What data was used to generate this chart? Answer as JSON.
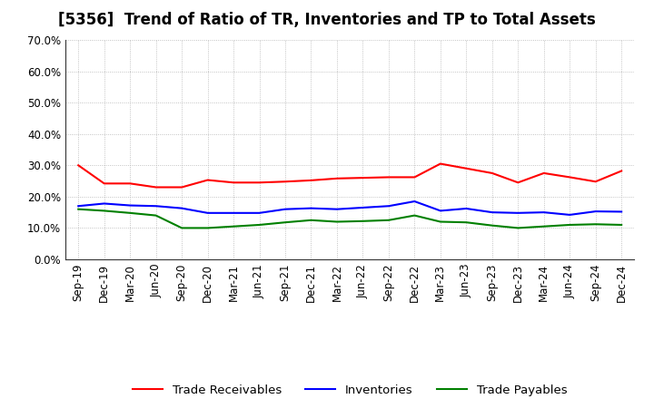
{
  "title": "[5356]  Trend of Ratio of TR, Inventories and TP to Total Assets",
  "labels": [
    "Sep-19",
    "Dec-19",
    "Mar-20",
    "Jun-20",
    "Sep-20",
    "Dec-20",
    "Mar-21",
    "Jun-21",
    "Sep-21",
    "Dec-21",
    "Mar-22",
    "Jun-22",
    "Sep-22",
    "Dec-22",
    "Mar-23",
    "Jun-23",
    "Sep-23",
    "Dec-23",
    "Mar-24",
    "Jun-24",
    "Sep-24",
    "Dec-24"
  ],
  "trade_receivables": [
    0.3,
    0.242,
    0.242,
    0.23,
    0.23,
    0.253,
    0.245,
    0.245,
    0.248,
    0.252,
    0.258,
    0.26,
    0.262,
    0.262,
    0.305,
    0.29,
    0.275,
    0.245,
    0.275,
    0.262,
    0.248,
    0.282
  ],
  "inventories": [
    0.17,
    0.178,
    0.172,
    0.17,
    0.163,
    0.148,
    0.148,
    0.148,
    0.16,
    0.163,
    0.16,
    0.165,
    0.17,
    0.185,
    0.155,
    0.162,
    0.15,
    0.148,
    0.15,
    0.142,
    0.153,
    0.152
  ],
  "trade_payables": [
    0.16,
    0.155,
    0.148,
    0.14,
    0.1,
    0.1,
    0.105,
    0.11,
    0.118,
    0.125,
    0.12,
    0.122,
    0.125,
    0.14,
    0.12,
    0.118,
    0.108,
    0.1,
    0.105,
    0.11,
    0.112,
    0.11
  ],
  "ylim": [
    0.0,
    0.7
  ],
  "yticks": [
    0.0,
    0.1,
    0.2,
    0.3,
    0.4,
    0.5,
    0.6,
    0.7
  ],
  "tr_color": "#ff0000",
  "inv_color": "#0000ff",
  "tp_color": "#008000",
  "legend_tr": "Trade Receivables",
  "legend_inv": "Inventories",
  "legend_tp": "Trade Payables",
  "bg_color": "#ffffff",
  "grid_color": "#aaaaaa",
  "title_fontsize": 12,
  "tick_fontsize": 8.5,
  "legend_fontsize": 9.5
}
